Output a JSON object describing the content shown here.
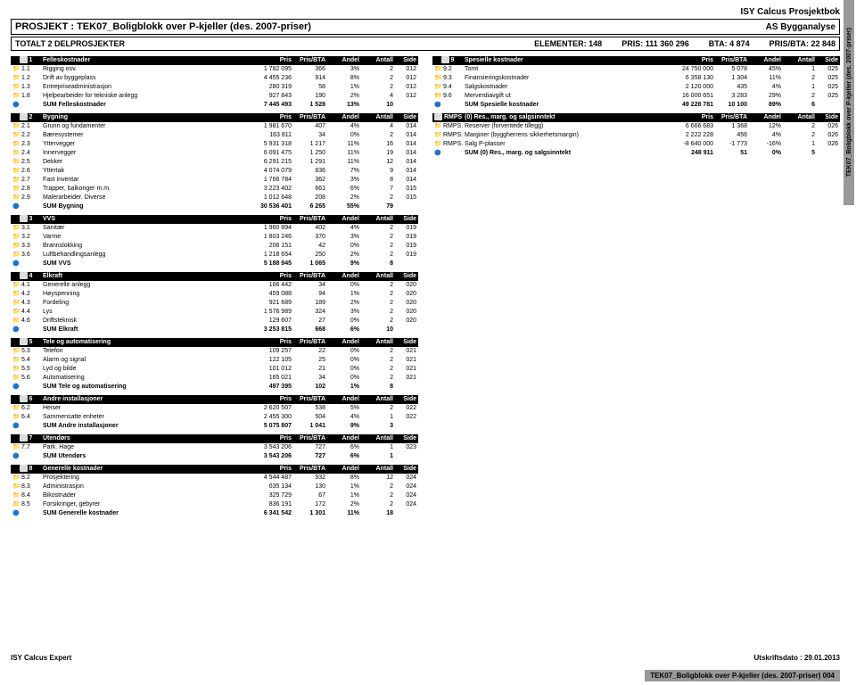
{
  "app_title": "ISY Calcus  Prosjektbok",
  "side_label": "TEK07_Boligblokk over P-kjeller (des. 2007-priser)",
  "header": {
    "project_label": "PROSJEKT : TEK07_Boligblokk over P-kjeller (des. 2007-priser)",
    "company": "AS Bygganalyse",
    "sub_left": "TOTALT 2 DELPROSJEKTER",
    "elements": "ELEMENTER: 148",
    "pris": "PRIS: 111 360 296",
    "bta": "BTA: 4 874",
    "prisbta": "PRIS/BTA: 22 848"
  },
  "cols": [
    "",
    "",
    "Pris",
    "Pris/BTA",
    "Andel",
    "Antall",
    "Side"
  ],
  "left_sections": [
    {
      "head": [
        "1",
        "Felleskostnader"
      ],
      "rows": [
        [
          "1.1",
          "Rigging osv.",
          "1 782 095",
          "366",
          "3%",
          "2",
          "012"
        ],
        [
          "1.2",
          "Drift av byggeplass",
          "4 455 236",
          "914",
          "8%",
          "2",
          "012"
        ],
        [
          "1.3",
          "Entrepriseadministrasjon",
          "280 319",
          "58",
          "1%",
          "2",
          "012"
        ],
        [
          "1.8",
          "Hjelpearbeider for tekniske anlegg",
          "927 843",
          "190",
          "2%",
          "4",
          "012"
        ]
      ],
      "sum": [
        "",
        "SUM Felleskostnader",
        "7 445 493",
        "1 528",
        "13%",
        "10",
        ""
      ]
    },
    {
      "head": [
        "2",
        "Bygning"
      ],
      "rows": [
        [
          "2.1",
          "Grunn og fundamenter",
          "1 981 670",
          "407",
          "4%",
          "4",
          "014"
        ],
        [
          "2.2",
          "Bæresystemer",
          "163 811",
          "34",
          "0%",
          "2",
          "014"
        ],
        [
          "2.3",
          "Yttervegger",
          "5 931 318",
          "1 217",
          "11%",
          "16",
          "014"
        ],
        [
          "2.4",
          "Innervegger",
          "6 091 475",
          "1 250",
          "11%",
          "19",
          "014"
        ],
        [
          "2.5",
          "Dekker",
          "6 291 215",
          "1 291",
          "11%",
          "12",
          "014"
        ],
        [
          "2.6",
          "Yttertak",
          "4 074 079",
          "836",
          "7%",
          "9",
          "014"
        ],
        [
          "2.7",
          "Fast inventar",
          "1 766 784",
          "362",
          "3%",
          "8",
          "014"
        ],
        [
          "2.8",
          "Trapper, balkonger m.m.",
          "3 223 402",
          "661",
          "6%",
          "7",
          "015"
        ],
        [
          "2.9",
          "Malerarbeider. Diverse",
          "1 012 648",
          "208",
          "2%",
          "2",
          "015"
        ]
      ],
      "sum": [
        "",
        "SUM Bygning",
        "30 536 401",
        "6 265",
        "55%",
        "79",
        ""
      ]
    },
    {
      "head": [
        "3",
        "VVS"
      ],
      "rows": [
        [
          "3.1",
          "Sanitær",
          "1 960 894",
          "402",
          "4%",
          "2",
          "019"
        ],
        [
          "3.2",
          "Varme",
          "1 803 246",
          "370",
          "3%",
          "2",
          "019"
        ],
        [
          "3.3",
          "Brannslokking",
          "206 151",
          "42",
          "0%",
          "2",
          "019"
        ],
        [
          "3.6",
          "Luftbehandlingsanlegg",
          "1 218 654",
          "250",
          "2%",
          "2",
          "019"
        ]
      ],
      "sum": [
        "",
        "SUM VVS",
        "5 188 945",
        "1 065",
        "9%",
        "8",
        ""
      ]
    },
    {
      "head": [
        "4",
        "Elkraft"
      ],
      "rows": [
        [
          "4.1",
          "Generelle anlegg",
          "166 442",
          "34",
          "0%",
          "2",
          "020"
        ],
        [
          "4.2",
          "Høyspenning",
          "459 088",
          "94",
          "1%",
          "2",
          "020"
        ],
        [
          "4.3",
          "Fordeling",
          "921 689",
          "189",
          "2%",
          "2",
          "020"
        ],
        [
          "4.4",
          "Lys",
          "1 576 989",
          "324",
          "3%",
          "2",
          "020"
        ],
        [
          "4.6",
          "Driftsteknisk",
          "129 607",
          "27",
          "0%",
          "2",
          "020"
        ]
      ],
      "sum": [
        "",
        "SUM Elkraft",
        "3 253 815",
        "668",
        "6%",
        "10",
        ""
      ]
    },
    {
      "head": [
        "5",
        "Tele og automatisering"
      ],
      "rows": [
        [
          "5.3",
          "Telefon",
          "109 257",
          "22",
          "0%",
          "2",
          "021"
        ],
        [
          "5.4",
          "Alarm og signal",
          "122 105",
          "25",
          "0%",
          "2",
          "021"
        ],
        [
          "5.5",
          "Lyd og bilde",
          "101 012",
          "21",
          "0%",
          "2",
          "021"
        ],
        [
          "5.6",
          "Automatisering",
          "165 021",
          "34",
          "0%",
          "2",
          "021"
        ]
      ],
      "sum": [
        "",
        "SUM Tele og automatisering",
        "497 395",
        "102",
        "1%",
        "8",
        ""
      ]
    },
    {
      "head": [
        "6",
        "Andre installasjoner"
      ],
      "rows": [
        [
          "6.2",
          "Heiser",
          "2 620 507",
          "538",
          "5%",
          "2",
          "022"
        ],
        [
          "6.4",
          "Sammensatte enheter",
          "2 455 300",
          "504",
          "4%",
          "1",
          "022"
        ]
      ],
      "sum": [
        "",
        "SUM Andre installasjoner",
        "5 075 807",
        "1 041",
        "9%",
        "3",
        ""
      ]
    },
    {
      "head": [
        "7",
        "Utendørs"
      ],
      "rows": [
        [
          "7.7",
          "Park. Hage",
          "3 543 206",
          "727",
          "6%",
          "1",
          "023"
        ]
      ],
      "sum": [
        "",
        "SUM Utendørs",
        "3 543 206",
        "727",
        "6%",
        "1",
        ""
      ]
    },
    {
      "head": [
        "8",
        "Generelle kostnader"
      ],
      "rows": [
        [
          "8.2",
          "Prosjektering",
          "4 544 487",
          "932",
          "8%",
          "12",
          "024"
        ],
        [
          "8.3",
          "Administrasjon",
          "635 134",
          "130",
          "1%",
          "2",
          "024"
        ],
        [
          "8.4",
          "Bikostnader",
          "325 729",
          "67",
          "1%",
          "2",
          "024"
        ],
        [
          "8.5",
          "Forsikringer, gebyrer",
          "836 191",
          "172",
          "2%",
          "2",
          "024"
        ]
      ],
      "sum": [
        "",
        "SUM Generelle kostnader",
        "6 341 542",
        "1 301",
        "11%",
        "18",
        ""
      ]
    }
  ],
  "right_sections": [
    {
      "head": [
        "9",
        "Spesielle kostnader"
      ],
      "rows": [
        [
          "9.2",
          "Tomt",
          "24 750 000",
          "5 078",
          "45%",
          "1",
          "025"
        ],
        [
          "9.3",
          "Finansieringskostnader",
          "6 358 130",
          "1 304",
          "11%",
          "2",
          "025"
        ],
        [
          "9.4",
          "Salgskostnader",
          "2 120 000",
          "435",
          "4%",
          "1",
          "025"
        ],
        [
          "9.6",
          "Merverdiavgift ut",
          "16 000 651",
          "3 283",
          "29%",
          "2",
          "025"
        ]
      ],
      "sum": [
        "",
        "SUM Spesielle kostnader",
        "49 228 781",
        "10 100",
        "89%",
        "6",
        ""
      ]
    },
    {
      "head": [
        "RMPS",
        "(0) Res., marg. og salgsinntekt"
      ],
      "rows": [
        [
          "RMPS.1",
          "Reserver (forventede tillegg)",
          "6 666 683",
          "1 368",
          "12%",
          "2",
          "026"
        ],
        [
          "RMPS.2",
          "Marginer (byggherrens sikkerhetsmargin)",
          "2 222 228",
          "456",
          "4%",
          "2",
          "026"
        ],
        [
          "RMPS.4",
          "Salg P-plasser",
          "-8 640 000",
          "-1 773",
          "-16%",
          "1",
          "026"
        ]
      ],
      "sum": [
        "",
        "SUM (0) Res., marg. og salgsinntekt",
        "248 911",
        "51",
        "0%",
        "5",
        ""
      ]
    }
  ],
  "footer": {
    "left": "ISY Calcus Expert",
    "right": "Utskriftsdato  : 29.01.2013",
    "tab": "TEK07_Boligblokk over P-kjeller (des. 2007-priser) 004"
  }
}
